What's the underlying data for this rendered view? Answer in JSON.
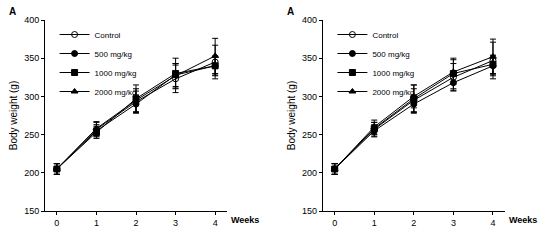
{
  "chart_data": [
    {
      "type": "line",
      "title": "A",
      "x_label": "Weeks",
      "y_label": "Body weight (g)",
      "x": [
        0,
        1,
        2,
        3,
        4
      ],
      "xlim": [
        -0.3,
        4.3
      ],
      "xticks": [
        0,
        1,
        2,
        3,
        4
      ],
      "ylim": [
        150,
        400
      ],
      "yticks": [
        150,
        200,
        250,
        300,
        350,
        400
      ],
      "legend": "top left",
      "grid": false,
      "series": [
        {
          "name": "Control",
          "color": "#000000",
          "marker": "open_circle",
          "line_style": "solid",
          "values": [
            205,
            257,
            293,
            323,
            345
          ],
          "errors": [
            7,
            9,
            14,
            18,
            22
          ]
        },
        {
          "name": "500 mg/kg",
          "color": "#000000",
          "marker": "circle",
          "line_style": "solid",
          "values": [
            205,
            255,
            290,
            328,
            340
          ],
          "errors": [
            7,
            8,
            12,
            15,
            13
          ]
        },
        {
          "name": "1000 mg/kg",
          "color": "#000000",
          "marker": "square",
          "line_style": "solid",
          "values": [
            205,
            253,
            297,
            330,
            340
          ],
          "errors": [
            7,
            8,
            18,
            20,
            12
          ]
        },
        {
          "name": "2000 mg/kg",
          "color": "#000000",
          "marker": "triangle",
          "line_style": "solid",
          "values": [
            205,
            258,
            295,
            327,
            353
          ],
          "errors": [
            7,
            9,
            15,
            16,
            23
          ]
        }
      ]
    },
    {
      "type": "line",
      "title": "A",
      "x_label": "Weeks",
      "y_label": "Body weight (g)",
      "x": [
        0,
        1,
        2,
        3,
        4
      ],
      "xlim": [
        -0.3,
        4.3
      ],
      "xticks": [
        0,
        1,
        2,
        3,
        4
      ],
      "ylim": [
        150,
        400
      ],
      "yticks": [
        150,
        200,
        250,
        300,
        350,
        400
      ],
      "legend": "top left",
      "grid": false,
      "series": [
        {
          "name": "Control",
          "color": "#000000",
          "marker": "open_circle",
          "line_style": "solid",
          "values": [
            205,
            257,
            295,
            325,
            347
          ],
          "errors": [
            7,
            9,
            15,
            18,
            24
          ]
        },
        {
          "name": "500 mg/kg",
          "color": "#000000",
          "marker": "circle",
          "line_style": "solid",
          "values": [
            205,
            255,
            290,
            318,
            340
          ],
          "errors": [
            7,
            8,
            12,
            10,
            13
          ]
        },
        {
          "name": "1000 mg/kg",
          "color": "#000000",
          "marker": "square",
          "line_style": "solid",
          "values": [
            205,
            258,
            297,
            330,
            342
          ],
          "errors": [
            7,
            8,
            18,
            20,
            12
          ]
        },
        {
          "name": "2000 mg/kg",
          "color": "#000000",
          "marker": "triangle",
          "line_style": "solid",
          "values": [
            205,
            260,
            300,
            332,
            352
          ],
          "errors": [
            7,
            9,
            15,
            16,
            23
          ]
        }
      ]
    }
  ]
}
